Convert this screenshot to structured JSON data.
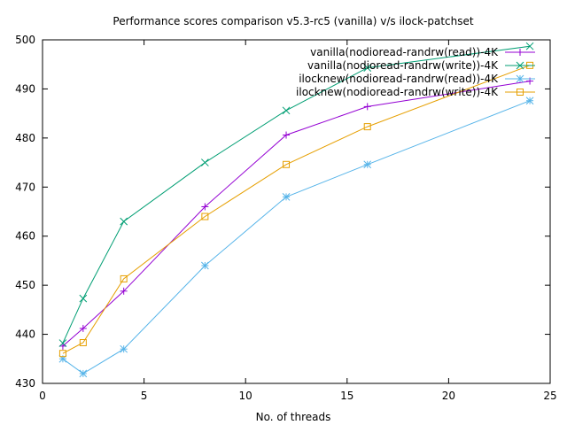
{
  "chart_data": {
    "type": "line",
    "title": "Performance scores comparison v5.3-rc5 (vanilla) v/s ilock-patchset",
    "xlabel": "No. of threads",
    "ylabel": "",
    "xlim": [
      0,
      25
    ],
    "ylim": [
      430,
      500
    ],
    "xticks": [
      0,
      5,
      10,
      15,
      20,
      25
    ],
    "yticks": [
      430,
      440,
      450,
      460,
      470,
      480,
      490,
      500
    ],
    "grid": false,
    "legend_position": "top-right",
    "x": [
      1,
      2,
      4,
      8,
      12,
      16,
      24
    ],
    "series": [
      {
        "name": "vanilla(nodioread-randrw(read))-4K",
        "color": "#9400d3",
        "marker": "plus",
        "values": [
          437.6,
          441.2,
          448.8,
          466.0,
          480.6,
          486.4,
          491.6
        ]
      },
      {
        "name": "vanilla(nodioread-randrw(write))-4K",
        "color": "#009e73",
        "marker": "cross",
        "values": [
          438.2,
          447.3,
          463.0,
          475.0,
          485.6,
          494.3,
          498.7
        ]
      },
      {
        "name": "ilocknew(nodioread-randrw(read))-4K",
        "color": "#56b4e9",
        "marker": "star",
        "values": [
          435.0,
          432.0,
          437.0,
          454.0,
          468.0,
          474.6,
          487.6
        ]
      },
      {
        "name": "ilocknew(nodioread-randrw(write))-4K",
        "color": "#e69f00",
        "marker": "square",
        "values": [
          436.1,
          438.3,
          451.3,
          464.0,
          474.6,
          482.3,
          494.8
        ]
      }
    ]
  }
}
